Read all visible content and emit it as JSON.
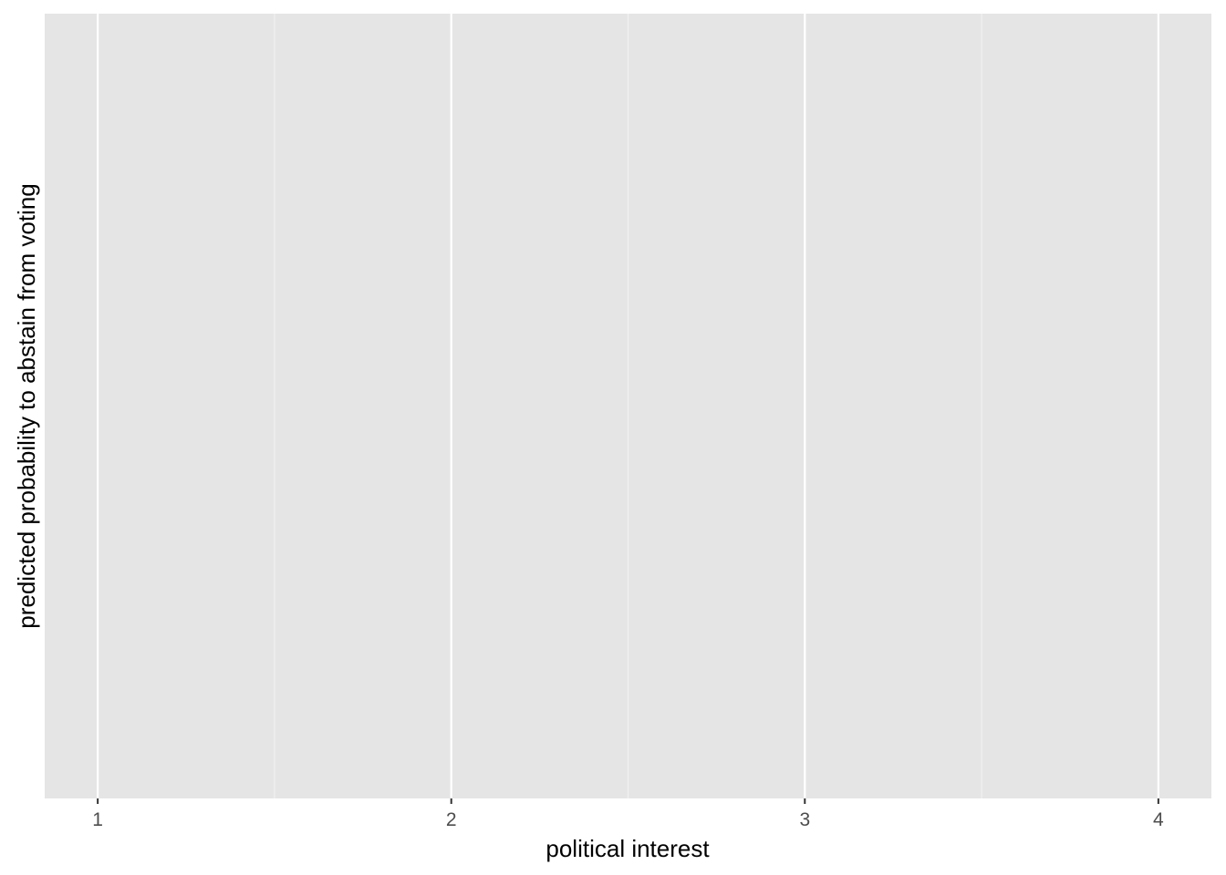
{
  "chart_data": {
    "type": "line",
    "title": "",
    "xlabel": "political interest",
    "ylabel": "predicted probability to abstain from voting",
    "x_ticks": [
      1,
      2,
      3,
      4
    ],
    "x_tick_labels": [
      "1",
      "2",
      "3",
      "4"
    ],
    "xlim": [
      0.85,
      4.15
    ],
    "y_ticks": [],
    "series": [],
    "grid": true,
    "legend": "none",
    "colors": {
      "panel_background": "#E5E5E5",
      "grid_major": "#FFFFFF",
      "grid_minor": "#F2F2F2",
      "tick_label": "#4D4D4D",
      "axis_title": "#000000",
      "tick_mark": "#333333"
    }
  }
}
